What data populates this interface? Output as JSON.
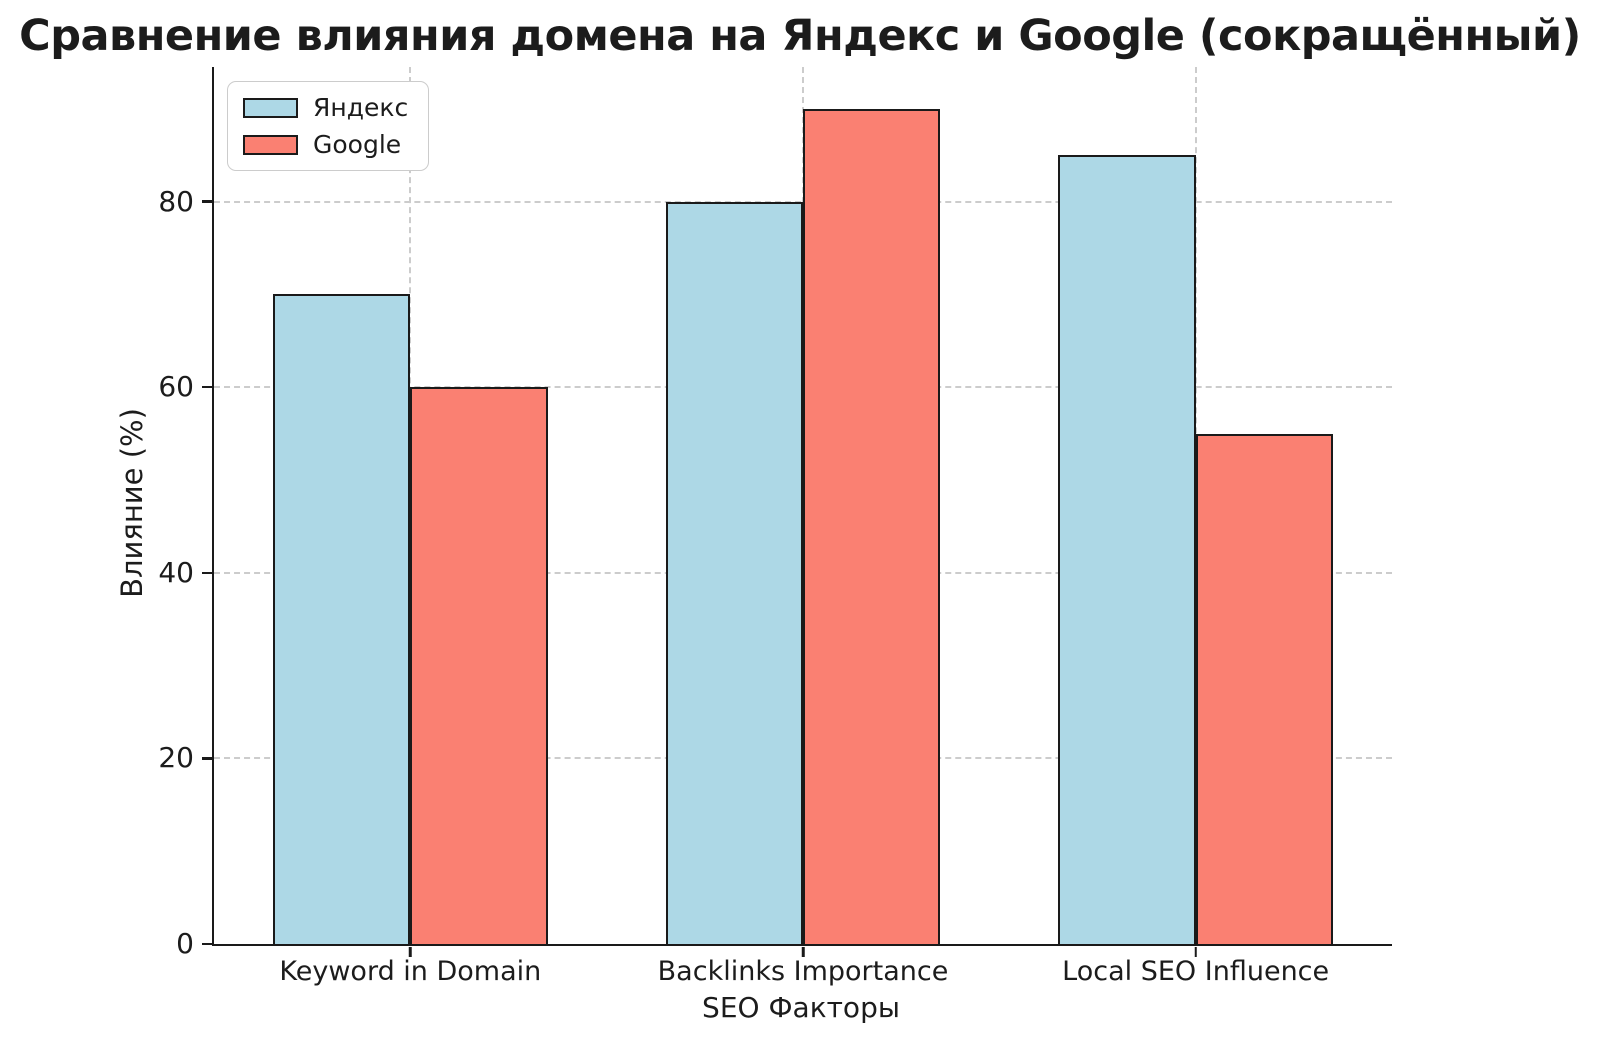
{
  "chart_data": {
    "type": "bar",
    "title": "Сравнение влияния домена на Яндекс и Google (сокращённый)",
    "xlabel": "SEO Факторы",
    "ylabel": "Влияние (%)",
    "categories": [
      "Keyword in Domain",
      "Backlinks Importance",
      "Local SEO Influence"
    ],
    "series": [
      {
        "name": "Яндекс",
        "key": "yandex",
        "color": "#ADD8E6",
        "values": [
          70,
          80,
          85
        ]
      },
      {
        "name": "Google",
        "key": "google",
        "color": "#FA8072",
        "values": [
          60,
          90,
          55
        ]
      }
    ],
    "ylim": [
      0,
      94.5
    ],
    "yticks": [
      0,
      20,
      40,
      60,
      80
    ],
    "bar_width_fraction": 0.35,
    "grid": "dashed",
    "legend_position": "upper-left",
    "colors": {
      "background": "#ffffff",
      "grid": "#cccccc",
      "axis": "#1a1a1a",
      "bar_edge": "#1a1a1a",
      "text": "#1c1c1c"
    }
  }
}
